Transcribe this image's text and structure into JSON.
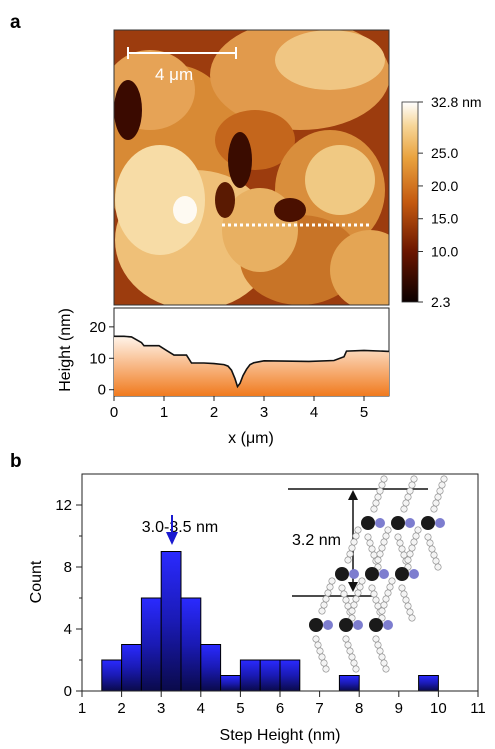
{
  "panels": {
    "a": {
      "label": "a",
      "scale_bar": "4 μm",
      "colorbar": {
        "ticks": [
          "32.8 nm",
          "25.0",
          "20.0",
          "15.0",
          "10.0",
          "2.3"
        ],
        "values": [
          32.8,
          25.0,
          20.0,
          15.0,
          10.0,
          2.3
        ]
      }
    },
    "b": {
      "label": "b",
      "peak_annotation": "3.0-3.5 nm",
      "inset_label": "3.2 nm"
    }
  },
  "chart_data": [
    {
      "type": "line",
      "panel": "a",
      "xlabel": "x (μm)",
      "ylabel": "Height (nm)",
      "xlim": [
        0,
        5.5
      ],
      "ylim": [
        -2,
        26
      ],
      "xticks": [
        0,
        1,
        2,
        3,
        4,
        5
      ],
      "yticks": [
        0,
        10,
        20
      ],
      "x": [
        0.0,
        0.2,
        0.35,
        0.55,
        0.6,
        0.9,
        1.05,
        1.2,
        1.45,
        1.55,
        1.8,
        2.0,
        2.2,
        2.28,
        2.35,
        2.42,
        2.47,
        2.52,
        2.58,
        2.65,
        2.72,
        2.8,
        3.0,
        3.4,
        3.9,
        4.4,
        4.6,
        4.65,
        5.0,
        5.5
      ],
      "y": [
        17,
        17,
        16.8,
        15,
        14,
        14,
        12.5,
        11,
        11,
        8.5,
        8.5,
        8.3,
        8.0,
        7.5,
        6.2,
        3.5,
        1.0,
        2.0,
        4.5,
        6.5,
        8.0,
        8.6,
        9.2,
        9.1,
        9.0,
        9.3,
        10.5,
        12.3,
        12.5,
        12.2
      ]
    },
    {
      "type": "bar",
      "panel": "b",
      "xlabel": "Step Height (nm)",
      "ylabel": "Count",
      "xlim": [
        1,
        11
      ],
      "ylim": [
        0,
        14
      ],
      "xticks": [
        1,
        2,
        3,
        4,
        5,
        6,
        7,
        8,
        9,
        10,
        11
      ],
      "yticks": [
        0,
        4,
        8,
        12
      ],
      "bin_width": 0.5,
      "bin_starts": [
        1.5,
        2.0,
        2.5,
        3.0,
        3.5,
        4.0,
        4.5,
        5.0,
        5.5,
        6.0,
        7.5,
        9.5
      ],
      "values": [
        2,
        3,
        6,
        9,
        6,
        3,
        1,
        2,
        2,
        2,
        1,
        1
      ]
    }
  ]
}
